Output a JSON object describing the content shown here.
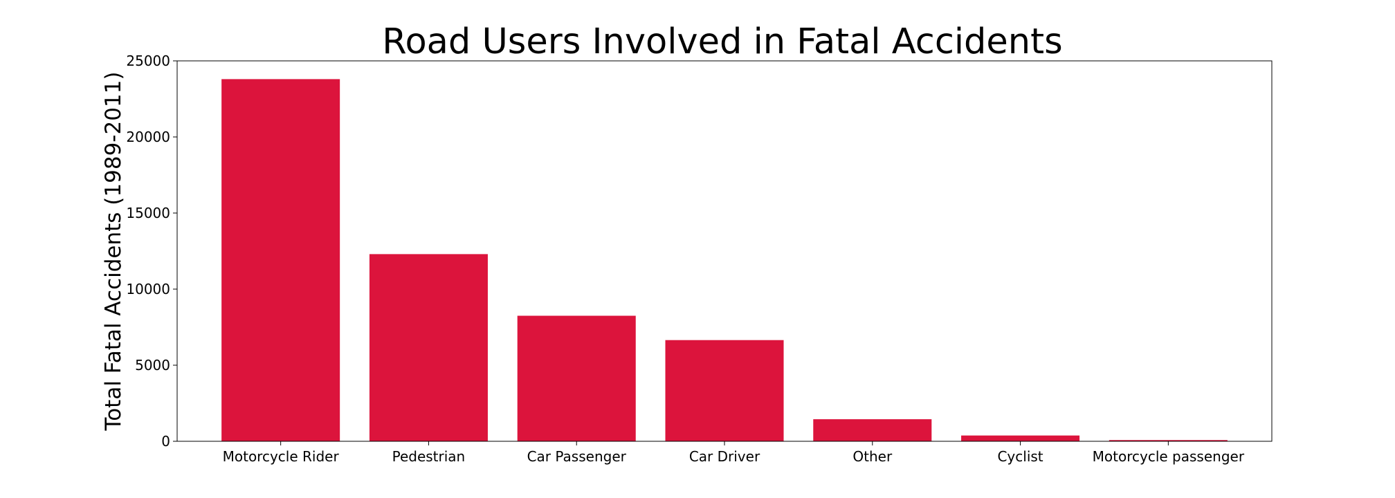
{
  "chart_data": {
    "type": "bar",
    "title": "Road Users Involved in Fatal Accidents",
    "xlabel": "",
    "ylabel": "Total Fatal Accidents (1989-2011)",
    "categories": [
      "Motorcycle Rider",
      "Pedestrian",
      "Car Passenger",
      "Car Driver",
      "Other",
      "Cyclist",
      "Motorcycle passenger"
    ],
    "values": [
      23800,
      12300,
      8250,
      6650,
      1450,
      380,
      80
    ],
    "ylim": [
      0,
      25000
    ],
    "yticks": [
      0,
      5000,
      10000,
      15000,
      20000,
      25000
    ],
    "grid": false,
    "legend": "none",
    "colors": {
      "bar": "#DC143C",
      "axes": "#000000",
      "background": "#FFFFFF"
    }
  }
}
